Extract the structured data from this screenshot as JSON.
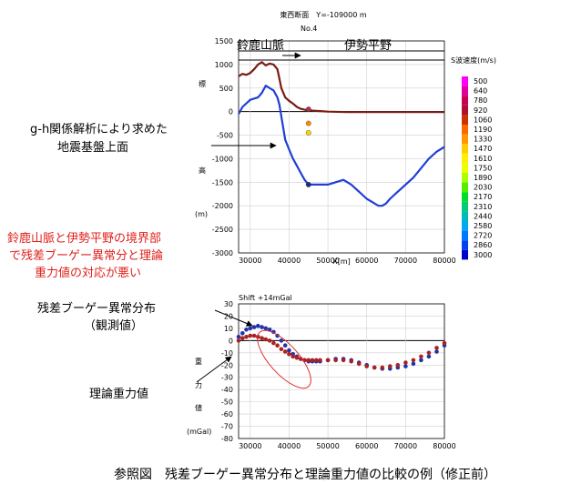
{
  "caption": "参照図　残差ブーゲー異常分布と理論重力値の比較の例（修正前）",
  "annotations": {
    "basement": [
      "g-h関係解析により求めた",
      "地震基盤上面"
    ],
    "mismatch": [
      "鈴鹿山脈と伊勢平野の境界部",
      "で残差ブーゲー異常分と理論",
      "重力値の対応が悪い"
    ],
    "observed": [
      "残差ブーゲー異常分布",
      "（観測値）"
    ],
    "theory": "理論重力値"
  },
  "colors": {
    "surface": "#7a1a12",
    "basement": "#1f3fd6",
    "observed": "#2233aa",
    "theoretical": "#aa2222",
    "annotation_red": "#e0201a",
    "ellipse": "#e03030"
  },
  "chart_data": [
    {
      "type": "line",
      "title": "東西断面　Y=-109000  m",
      "subtitle": "No.4",
      "region_left": "鈴鹿山脈",
      "region_right": "伊勢平野",
      "xlabel": "X[m]",
      "ylabel": [
        "標",
        "高",
        "(m)"
      ],
      "xlim": [
        27000,
        80000
      ],
      "ylim": [
        -3000,
        1500
      ],
      "x_ticks": [
        "30000",
        "40000",
        "50000",
        "60000",
        "70000",
        "80000"
      ],
      "y_ticks": [
        "1500",
        "1000",
        "500",
        "0",
        "-500",
        "-1000",
        "-1500",
        "-2000",
        "-2500",
        "-3000"
      ],
      "series": [
        {
          "name": "",
          "x": [
            27000,
            28000,
            29000,
            30000,
            31000,
            32000,
            33000,
            34000,
            35000,
            36000,
            37000,
            37500,
            38000,
            39000,
            40000,
            41000,
            42000,
            43000,
            44000,
            45000,
            46000,
            48000,
            50000,
            55000,
            60000,
            65000,
            70000,
            75000,
            80000
          ],
          "y": [
            750,
            800,
            780,
            820,
            900,
            1000,
            1050,
            980,
            1020,
            1000,
            900,
            700,
            500,
            300,
            230,
            170,
            100,
            60,
            40,
            30,
            20,
            10,
            0,
            -10,
            -10,
            -10,
            -10,
            -10,
            -10
          ]
        },
        {
          "name": "",
          "x": [
            27000,
            28000,
            30000,
            32000,
            33000,
            34000,
            35000,
            36000,
            37000,
            37500,
            38000,
            39000,
            40000,
            41000,
            42000,
            43000,
            44000,
            45000,
            46000,
            48000,
            50000,
            52000,
            54000,
            56000,
            58000,
            60000,
            62000,
            63000,
            64000,
            65000,
            66000,
            68000,
            70000,
            72000,
            74000,
            76000,
            78000,
            80000
          ],
          "y": [
            -50,
            100,
            250,
            300,
            400,
            550,
            500,
            450,
            300,
            150,
            -100,
            -600,
            -800,
            -1000,
            -1150,
            -1300,
            -1450,
            -1550,
            -1550,
            -1550,
            -1550,
            -1500,
            -1450,
            -1550,
            -1700,
            -1850,
            -1950,
            -2000,
            -2000,
            -1950,
            -1850,
            -1700,
            -1550,
            -1400,
            -1200,
            -1000,
            -850,
            -750
          ]
        }
      ],
      "points": [
        {
          "x": 45000,
          "y": 50,
          "color": "#b03050"
        },
        {
          "x": 45000,
          "y": -250,
          "color": "#ff8c00"
        },
        {
          "x": 45000,
          "y": -450,
          "color": "#ffd700"
        },
        {
          "x": 45000,
          "y": -1550,
          "color": "#1a2a8a"
        }
      ],
      "legend": {
        "title": "S波速度(m/s)",
        "entries": [
          {
            "label": "500",
            "color": "#ff00ff"
          },
          {
            "label": "640",
            "color": "#e000a0"
          },
          {
            "label": "780",
            "color": "#c8005a"
          },
          {
            "label": "920",
            "color": "#b01030"
          },
          {
            "label": "1060",
            "color": "#cc3300"
          },
          {
            "label": "1190",
            "color": "#ff6600"
          },
          {
            "label": "1330",
            "color": "#ff9900"
          },
          {
            "label": "1470",
            "color": "#ffcc00"
          },
          {
            "label": "1610",
            "color": "#ffee00"
          },
          {
            "label": "1750",
            "color": "#eeff00"
          },
          {
            "label": "1890",
            "color": "#aaff00"
          },
          {
            "label": "2030",
            "color": "#55ee00"
          },
          {
            "label": "2170",
            "color": "#00dd22"
          },
          {
            "label": "2310",
            "color": "#00cc77"
          },
          {
            "label": "2440",
            "color": "#00bbbb"
          },
          {
            "label": "2580",
            "color": "#00aaee"
          },
          {
            "label": "2720",
            "color": "#0077ff"
          },
          {
            "label": "2860",
            "color": "#0044ee"
          },
          {
            "label": "3000",
            "color": "#0000cc"
          }
        ]
      }
    },
    {
      "type": "scatter",
      "title": "Shift +14mGal",
      "ylabel": [
        "重",
        "力",
        "値",
        "(mGal)"
      ],
      "xlim": [
        27000,
        80000
      ],
      "ylim": [
        -80,
        30
      ],
      "x_ticks": [
        "30000",
        "40000",
        "50000",
        "60000",
        "70000",
        "80000"
      ],
      "y_ticks": [
        "30",
        "20",
        "10",
        "0",
        "-10",
        "-20",
        "-30",
        "-40",
        "-50",
        "-60",
        "-70",
        "-80"
      ],
      "series": [
        {
          "name": "",
          "x": [
            27000,
            28000,
            29000,
            30000,
            31000,
            32000,
            33000,
            34000,
            35000,
            36000,
            37000,
            38000,
            39000,
            40000,
            41000,
            42000,
            43000,
            44000,
            45000,
            46000,
            47000,
            48000,
            50000,
            52000,
            54000,
            56000,
            58000,
            60000,
            62000,
            64000,
            66000,
            68000,
            70000,
            72000,
            74000,
            76000,
            78000,
            80000
          ],
          "y": [
            3,
            6,
            9,
            10,
            11,
            12,
            11,
            10,
            9,
            7,
            4,
            0,
            -4,
            -8,
            -11,
            -13,
            -15,
            -16,
            -17,
            -17,
            -17,
            -17,
            -16,
            -15,
            -15,
            -16,
            -18,
            -20,
            -22,
            -23,
            -23,
            -22,
            -21,
            -19,
            -16,
            -13,
            -9,
            -4
          ]
        },
        {
          "name": "",
          "x": [
            27000,
            28000,
            29000,
            30000,
            31000,
            32000,
            33000,
            34000,
            35000,
            36000,
            37000,
            38000,
            39000,
            40000,
            41000,
            42000,
            43000,
            44000,
            45000,
            46000,
            47000,
            48000,
            50000,
            52000,
            54000,
            56000,
            58000,
            60000,
            62000,
            64000,
            66000,
            68000,
            70000,
            72000,
            74000,
            76000,
            78000,
            80000
          ],
          "y": [
            0,
            2,
            3,
            4,
            4,
            3,
            2,
            1,
            0,
            -2,
            -4,
            -7,
            -9,
            -11,
            -13,
            -14,
            -15,
            -16,
            -16,
            -16,
            -16,
            -16,
            -16,
            -16,
            -16,
            -17,
            -19,
            -21,
            -22,
            -22,
            -21,
            -20,
            -18,
            -16,
            -13,
            -10,
            -6,
            -2
          ]
        }
      ]
    }
  ]
}
